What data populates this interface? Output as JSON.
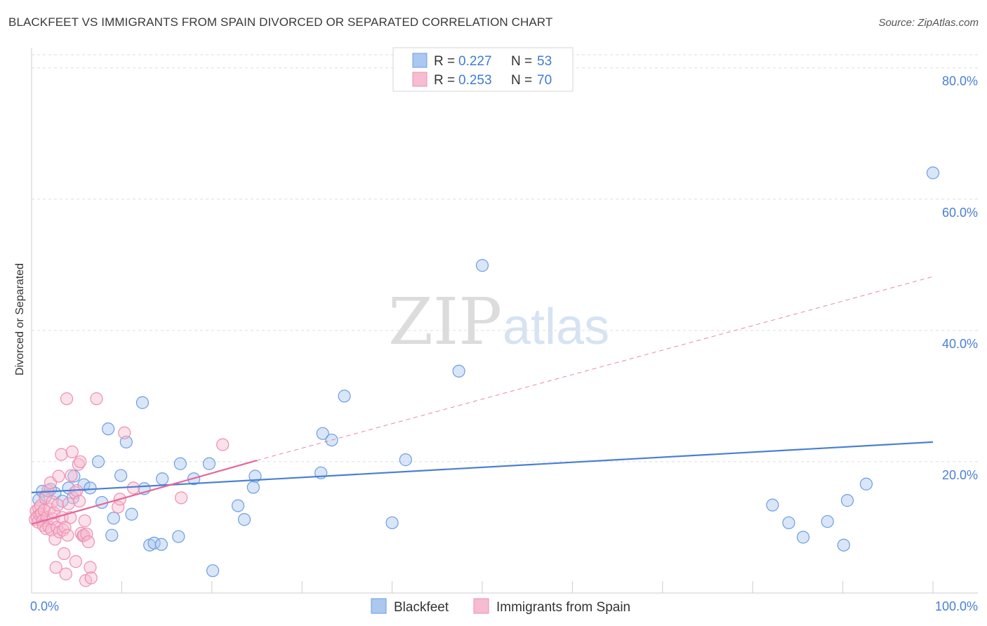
{
  "title": "BLACKFEET VS IMMIGRANTS FROM SPAIN DIVORCED OR SEPARATED CORRELATION CHART",
  "source": "Source: ZipAtlas.com",
  "watermark": {
    "zip": "ZIP",
    "atlas": "atlas"
  },
  "colors": {
    "blue": "#4a7fd4",
    "blue_fill": "#aac8f0",
    "blue_stroke": "#6d9ee0",
    "pink": "#e4679a",
    "pink_fill": "#f6bccf",
    "pink_stroke": "#ee8fb2",
    "grid": "#dddddd",
    "axis": "#cccccc"
  },
  "legend": {
    "rows": [
      {
        "r_label": "R =",
        "r_value": "0.227",
        "n_label": "N =",
        "n_value": "53"
      },
      {
        "r_label": "R =",
        "r_value": "0.253",
        "n_label": "N =",
        "n_value": "70"
      }
    ]
  },
  "chart_data": {
    "type": "scatter",
    "title": "BLACKFEET VS IMMIGRANTS FROM SPAIN DIVORCED OR SEPARATED CORRELATION CHART",
    "xlabel": "",
    "ylabel": "Divorced or Separated",
    "xlim": [
      0,
      100
    ],
    "ylim": [
      0,
      82
    ],
    "x_tick_labels": [
      "0.0%",
      "100.0%"
    ],
    "y_ticks": [
      20,
      40,
      60,
      80
    ],
    "y_tick_labels": [
      "20.0%",
      "40.0%",
      "60.0%",
      "80.0%"
    ],
    "legend_position": "bottom-center",
    "series": [
      {
        "name": "Blackfeet",
        "R": 0.227,
        "N": 53,
        "trend": {
          "x0": 0,
          "y0": 15.3,
          "x1": 100,
          "y1": 23.0,
          "style": "solid"
        },
        "points": [
          [
            0.8,
            14.2
          ],
          [
            1.2,
            15.5
          ],
          [
            1.6,
            14.8
          ],
          [
            2.1,
            15.8
          ],
          [
            2.6,
            15.2
          ],
          [
            3.4,
            14.0
          ],
          [
            4.1,
            16.0
          ],
          [
            4.6,
            14.5
          ],
          [
            4.7,
            17.8
          ],
          [
            5.8,
            16.5
          ],
          [
            6.5,
            16.0
          ],
          [
            7.4,
            20.0
          ],
          [
            7.8,
            13.8
          ],
          [
            8.5,
            25.0
          ],
          [
            8.9,
            8.8
          ],
          [
            9.1,
            11.4
          ],
          [
            9.9,
            17.9
          ],
          [
            10.5,
            23.0
          ],
          [
            11.1,
            12.0
          ],
          [
            12.3,
            29.0
          ],
          [
            12.5,
            15.9
          ],
          [
            13.1,
            7.3
          ],
          [
            13.6,
            7.6
          ],
          [
            14.4,
            7.4
          ],
          [
            14.5,
            17.4
          ],
          [
            16.3,
            8.6
          ],
          [
            16.5,
            19.7
          ],
          [
            18.0,
            17.4
          ],
          [
            20.1,
            3.4
          ],
          [
            19.7,
            19.7
          ],
          [
            22.9,
            13.3
          ],
          [
            23.6,
            11.2
          ],
          [
            24.6,
            16.1
          ],
          [
            24.8,
            17.8
          ],
          [
            32.1,
            18.3
          ],
          [
            32.3,
            24.3
          ],
          [
            33.3,
            23.3
          ],
          [
            34.7,
            30.0
          ],
          [
            40.0,
            10.7
          ],
          [
            41.5,
            20.3
          ],
          [
            47.4,
            33.8
          ],
          [
            50.0,
            49.9
          ],
          [
            82.2,
            13.4
          ],
          [
            84.0,
            10.7
          ],
          [
            85.6,
            8.5
          ],
          [
            88.3,
            10.9
          ],
          [
            90.1,
            7.3
          ],
          [
            90.5,
            14.1
          ],
          [
            92.6,
            16.6
          ],
          [
            100.0,
            64.0
          ]
        ]
      },
      {
        "name": "Immigrants from Spain",
        "R": 0.253,
        "N": 70,
        "trend": {
          "x0": 0,
          "y0": 10.5,
          "x1": 25,
          "y1": 20.2,
          "style": "solid",
          "extension": {
            "x1": 100,
            "y1": 48.2,
            "style": "dashed"
          }
        },
        "points": [
          [
            0.4,
            11.2
          ],
          [
            0.5,
            12.5
          ],
          [
            0.6,
            11.6
          ],
          [
            0.7,
            10.8
          ],
          [
            0.8,
            12.9
          ],
          [
            0.9,
            11.9
          ],
          [
            1.0,
            13.3
          ],
          [
            1.1,
            12.1
          ],
          [
            1.2,
            11.0
          ],
          [
            1.3,
            10.3
          ],
          [
            1.4,
            12.6
          ],
          [
            1.5,
            14.5
          ],
          [
            1.6,
            9.8
          ],
          [
            1.7,
            11.5
          ],
          [
            1.8,
            15.6
          ],
          [
            1.9,
            10.1
          ],
          [
            2.0,
            12.8
          ],
          [
            2.1,
            16.8
          ],
          [
            2.2,
            9.6
          ],
          [
            2.3,
            13.9
          ],
          [
            2.4,
            11.3
          ],
          [
            2.5,
            12.2
          ],
          [
            2.6,
            8.2
          ],
          [
            2.7,
            3.9
          ],
          [
            2.8,
            10.0
          ],
          [
            2.9,
            13.4
          ],
          [
            3.0,
            17.8
          ],
          [
            3.1,
            9.3
          ],
          [
            3.3,
            21.1
          ],
          [
            3.4,
            11.5
          ],
          [
            3.5,
            9.6
          ],
          [
            3.6,
            6.0
          ],
          [
            3.7,
            10.0
          ],
          [
            3.8,
            2.9
          ],
          [
            3.9,
            29.6
          ],
          [
            4.0,
            8.8
          ],
          [
            4.1,
            13.6
          ],
          [
            4.3,
            11.5
          ],
          [
            4.4,
            17.9
          ],
          [
            4.5,
            21.5
          ],
          [
            4.8,
            15.3
          ],
          [
            4.9,
            4.8
          ],
          [
            5.0,
            15.6
          ],
          [
            5.2,
            19.6
          ],
          [
            5.3,
            14.0
          ],
          [
            5.4,
            20.0
          ],
          [
            5.5,
            9.1
          ],
          [
            5.7,
            8.7
          ],
          [
            5.8,
            8.8
          ],
          [
            5.9,
            11.0
          ],
          [
            6.0,
            1.9
          ],
          [
            6.1,
            9.0
          ],
          [
            6.3,
            7.8
          ],
          [
            6.5,
            3.9
          ],
          [
            6.6,
            2.3
          ],
          [
            7.2,
            29.6
          ],
          [
            9.6,
            13.1
          ],
          [
            9.8,
            14.3
          ],
          [
            10.3,
            24.4
          ],
          [
            11.3,
            16.0
          ],
          [
            16.6,
            14.5
          ],
          [
            21.2,
            22.6
          ]
        ]
      }
    ]
  }
}
